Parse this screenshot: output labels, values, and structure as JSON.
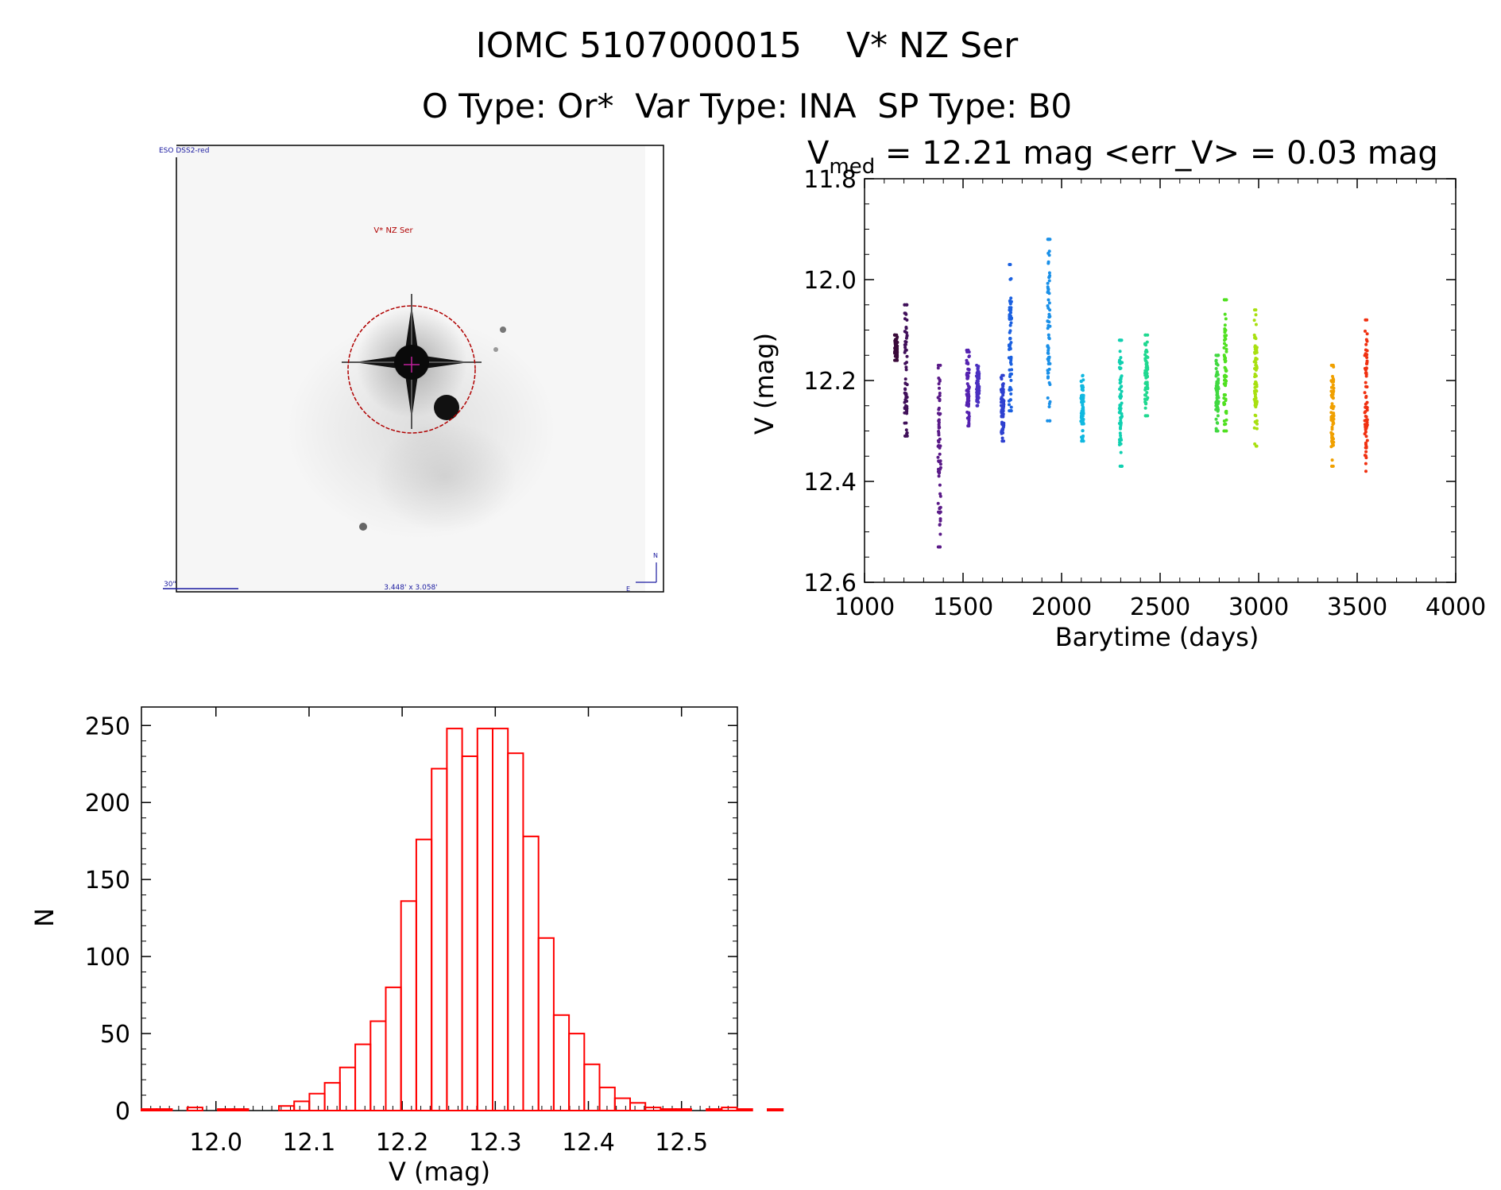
{
  "title": "IOMC 5107000015    V* NZ Ser",
  "subtitle": "O Type: Or*  Var Type: INA  SP Type: B0",
  "finder_chart": {
    "survey_label": "ESO DSS2-red",
    "object_label": "V* NZ Ser",
    "scale_label": "30\"",
    "fov_label": "3.448' x 3.058'",
    "north_label": "N",
    "east_label": "E",
    "colors": {
      "frame": "#000000",
      "annotation_blue": "#1a1aa0",
      "circle_red": "#b00000"
    }
  },
  "lightcurve_header": {
    "v_letter": "V",
    "v_sub": "med",
    "text": " = 12.21 mag <err_V> = 0.03 mag"
  },
  "chart_data": [
    {
      "type": "scatter",
      "xlabel": "Barytime (days)",
      "ylabel": "V (mag)",
      "xlim": [
        1000,
        4000
      ],
      "ylim": [
        12.6,
        11.8
      ],
      "y_inverted": true,
      "xticks": [
        1000,
        1500,
        2000,
        2500,
        3000,
        3500,
        4000
      ],
      "yticks": [
        "11.8",
        "12.0",
        "12.2",
        "12.4",
        "12.6"
      ],
      "grid": false,
      "color_scale": "rainbow by time",
      "clusters": [
        {
          "x": 1160,
          "ymin": 12.11,
          "ymax": 12.16,
          "color": "#3a0a3a"
        },
        {
          "x": 1210,
          "ymin": 12.05,
          "ymax": 12.31,
          "color": "#40105a"
        },
        {
          "x": 1380,
          "ymin": 12.17,
          "ymax": 12.53,
          "color": "#5a1a88"
        },
        {
          "x": 1525,
          "ymin": 12.14,
          "ymax": 12.29,
          "color": "#5522b0"
        },
        {
          "x": 1575,
          "ymin": 12.17,
          "ymax": 12.25,
          "color": "#4a30c0"
        },
        {
          "x": 1700,
          "ymin": 12.19,
          "ymax": 12.32,
          "color": "#2e40d0"
        },
        {
          "x": 1740,
          "ymin": 11.97,
          "ymax": 12.26,
          "color": "#1a60e0"
        },
        {
          "x": 1935,
          "ymin": 11.92,
          "ymax": 12.28,
          "color": "#1a90e8"
        },
        {
          "x": 2105,
          "ymin": 12.19,
          "ymax": 12.32,
          "color": "#10b8e0"
        },
        {
          "x": 2300,
          "ymin": 12.12,
          "ymax": 12.37,
          "color": "#10d0b0"
        },
        {
          "x": 2430,
          "ymin": 12.11,
          "ymax": 12.27,
          "color": "#20d890"
        },
        {
          "x": 2790,
          "ymin": 12.15,
          "ymax": 12.3,
          "color": "#40d840"
        },
        {
          "x": 2830,
          "ymin": 12.04,
          "ymax": 12.3,
          "color": "#50e020"
        },
        {
          "x": 2985,
          "ymin": 12.06,
          "ymax": 12.33,
          "color": "#a8e010"
        },
        {
          "x": 3375,
          "ymin": 12.17,
          "ymax": 12.37,
          "color": "#f0a000"
        },
        {
          "x": 3545,
          "ymin": 12.08,
          "ymax": 12.38,
          "color": "#f03010"
        }
      ]
    },
    {
      "type": "bar",
      "subtype": "histogram",
      "xlabel": "V (mag)",
      "ylabel": "N",
      "xlim": [
        11.92,
        12.56
      ],
      "ylim": [
        0,
        262
      ],
      "xticks": [
        "12.0",
        "12.1",
        "12.2",
        "12.3",
        "12.4",
        "12.5"
      ],
      "yticks": [
        "0",
        "50",
        "100",
        "150",
        "200",
        "250"
      ],
      "bin_start": 11.92,
      "bin_width": 0.0164,
      "values": [
        1,
        1,
        0,
        2,
        0,
        1,
        1,
        0,
        0,
        3,
        6,
        11,
        18,
        28,
        43,
        58,
        80,
        136,
        176,
        222,
        248,
        230,
        248,
        248,
        232,
        178,
        112,
        62,
        50,
        30,
        15,
        8,
        5,
        2,
        1,
        1,
        0,
        1,
        2,
        1,
        0,
        1,
        0
      ],
      "color": "#ff0000"
    }
  ]
}
